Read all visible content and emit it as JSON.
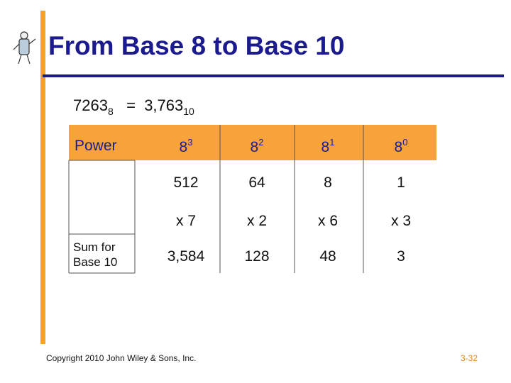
{
  "header": {
    "title": "From Base 8 to Base 10"
  },
  "equation": {
    "number": "7263",
    "base": "8",
    "equals": "=",
    "result": "3,763",
    "result_base": "10"
  },
  "table": {
    "power_label": "Power",
    "powers": [
      {
        "base": "8",
        "exp": "3"
      },
      {
        "base": "8",
        "exp": "2"
      },
      {
        "base": "8",
        "exp": "1"
      },
      {
        "base": "8",
        "exp": "0"
      }
    ],
    "place_values": [
      "512",
      "64",
      "8",
      "1"
    ],
    "digits": [
      "x 7",
      "x 2",
      "x 6",
      "x 3"
    ],
    "sum_label": "Sum for Base 10",
    "sums": [
      "3,584",
      "128",
      "48",
      "3"
    ]
  },
  "footer": {
    "copyright": "Copyright 2010 John Wiley & Sons, Inc.",
    "page": "3-32"
  }
}
